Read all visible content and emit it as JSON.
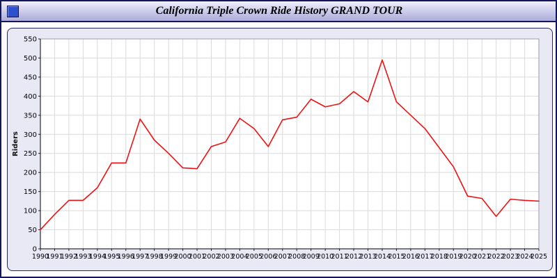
{
  "window": {
    "title": "California Triple Crown Ride History GRAND TOUR"
  },
  "colors": {
    "line": "#ee1111",
    "panel_background": "#e9e9f6",
    "window_border": "#15155c",
    "window_icon": "#2b50d0",
    "grid": "#dadada"
  },
  "chart_data": {
    "type": "line",
    "title": "California Triple Crown Ride History GRAND TOUR",
    "xlabel": "",
    "ylabel": "Riders",
    "ylim": [
      0,
      550
    ],
    "ytick_step": 50,
    "grid": true,
    "legend": false,
    "line_color": "#ee1111",
    "categories": [
      1990,
      1991,
      1992,
      1993,
      1994,
      1995,
      1996,
      1997,
      1998,
      1999,
      2000,
      2001,
      2002,
      2003,
      2004,
      2005,
      2006,
      2007,
      2008,
      2009,
      2010,
      2011,
      2012,
      2013,
      2014,
      2015,
      2016,
      2017,
      2018,
      2019,
      2020,
      2021,
      2022,
      2023,
      2024,
      2025
    ],
    "values": [
      50,
      90,
      127,
      127,
      160,
      225,
      225,
      340,
      285,
      250,
      212,
      210,
      268,
      280,
      342,
      315,
      268,
      338,
      345,
      392,
      372,
      380,
      412,
      385,
      495,
      385,
      350,
      315,
      265,
      215,
      138,
      132,
      85,
      130,
      127,
      125
    ]
  }
}
